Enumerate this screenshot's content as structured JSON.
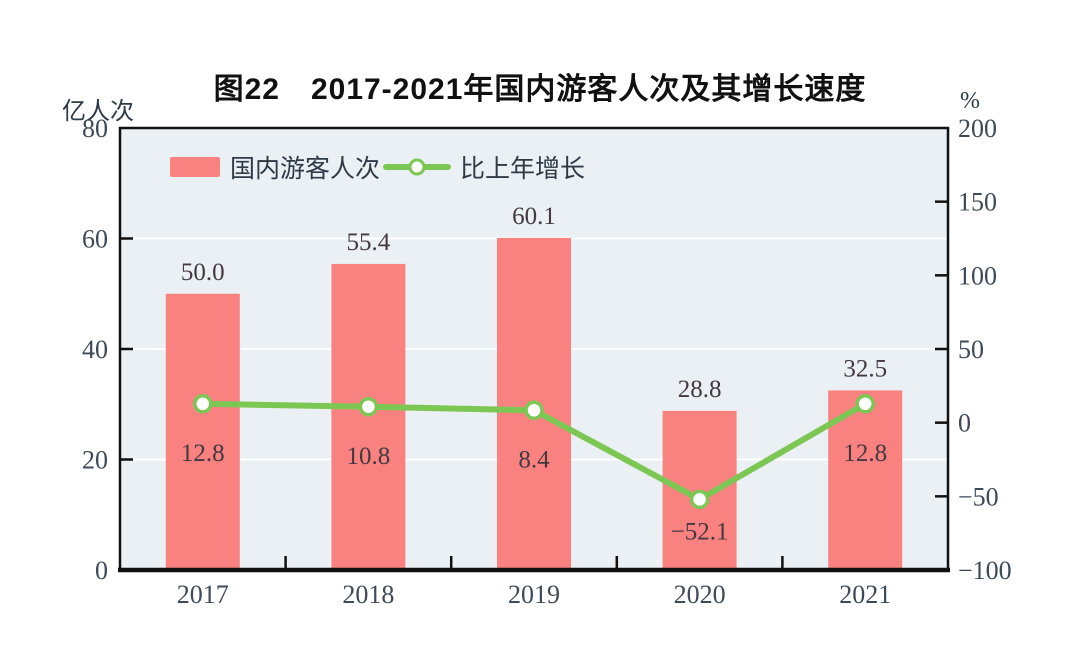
{
  "chart_data": {
    "type": "bar+line",
    "title": "图22　2017-2021年国内游客人次及其增长速度",
    "categories": [
      "2017",
      "2018",
      "2019",
      "2020",
      "2021"
    ],
    "series": [
      {
        "name": "国内游客人次",
        "type": "bar",
        "axis": "left",
        "unit": "亿人次",
        "color": "#F98280",
        "values": [
          50.0,
          55.4,
          60.1,
          28.8,
          32.5
        ],
        "labels": [
          "50.0",
          "55.4",
          "60.1",
          "28.8",
          "32.5"
        ]
      },
      {
        "name": "比上年增长",
        "type": "line",
        "axis": "right",
        "unit": "%",
        "color": "#7CC653",
        "marker_fill": "#FFFFFF",
        "values": [
          12.8,
          10.8,
          8.4,
          -52.1,
          12.8
        ],
        "labels": [
          "12.8",
          "10.8",
          "8.4",
          "−52.1",
          "12.8"
        ]
      }
    ],
    "left_axis": {
      "label": "亿人次",
      "min": 0,
      "max": 80,
      "ticks": [
        0,
        20,
        40,
        60,
        80
      ]
    },
    "right_axis": {
      "label": "%",
      "min": -100,
      "max": 200,
      "ticks": [
        -100,
        -50,
        0,
        50,
        100,
        150,
        200
      ]
    },
    "grid": {
      "show": true,
      "color": "#FFFFFF",
      "left_values": [
        20,
        40,
        60
      ]
    },
    "legend": {
      "position": "top-left",
      "entries": [
        "国内游客人次",
        "比上年增长"
      ]
    },
    "colors": {
      "plot_bg": "#EAF0F4",
      "axis_text": "#3E4A58",
      "data_label": "#433940",
      "frame": "#111111"
    }
  }
}
